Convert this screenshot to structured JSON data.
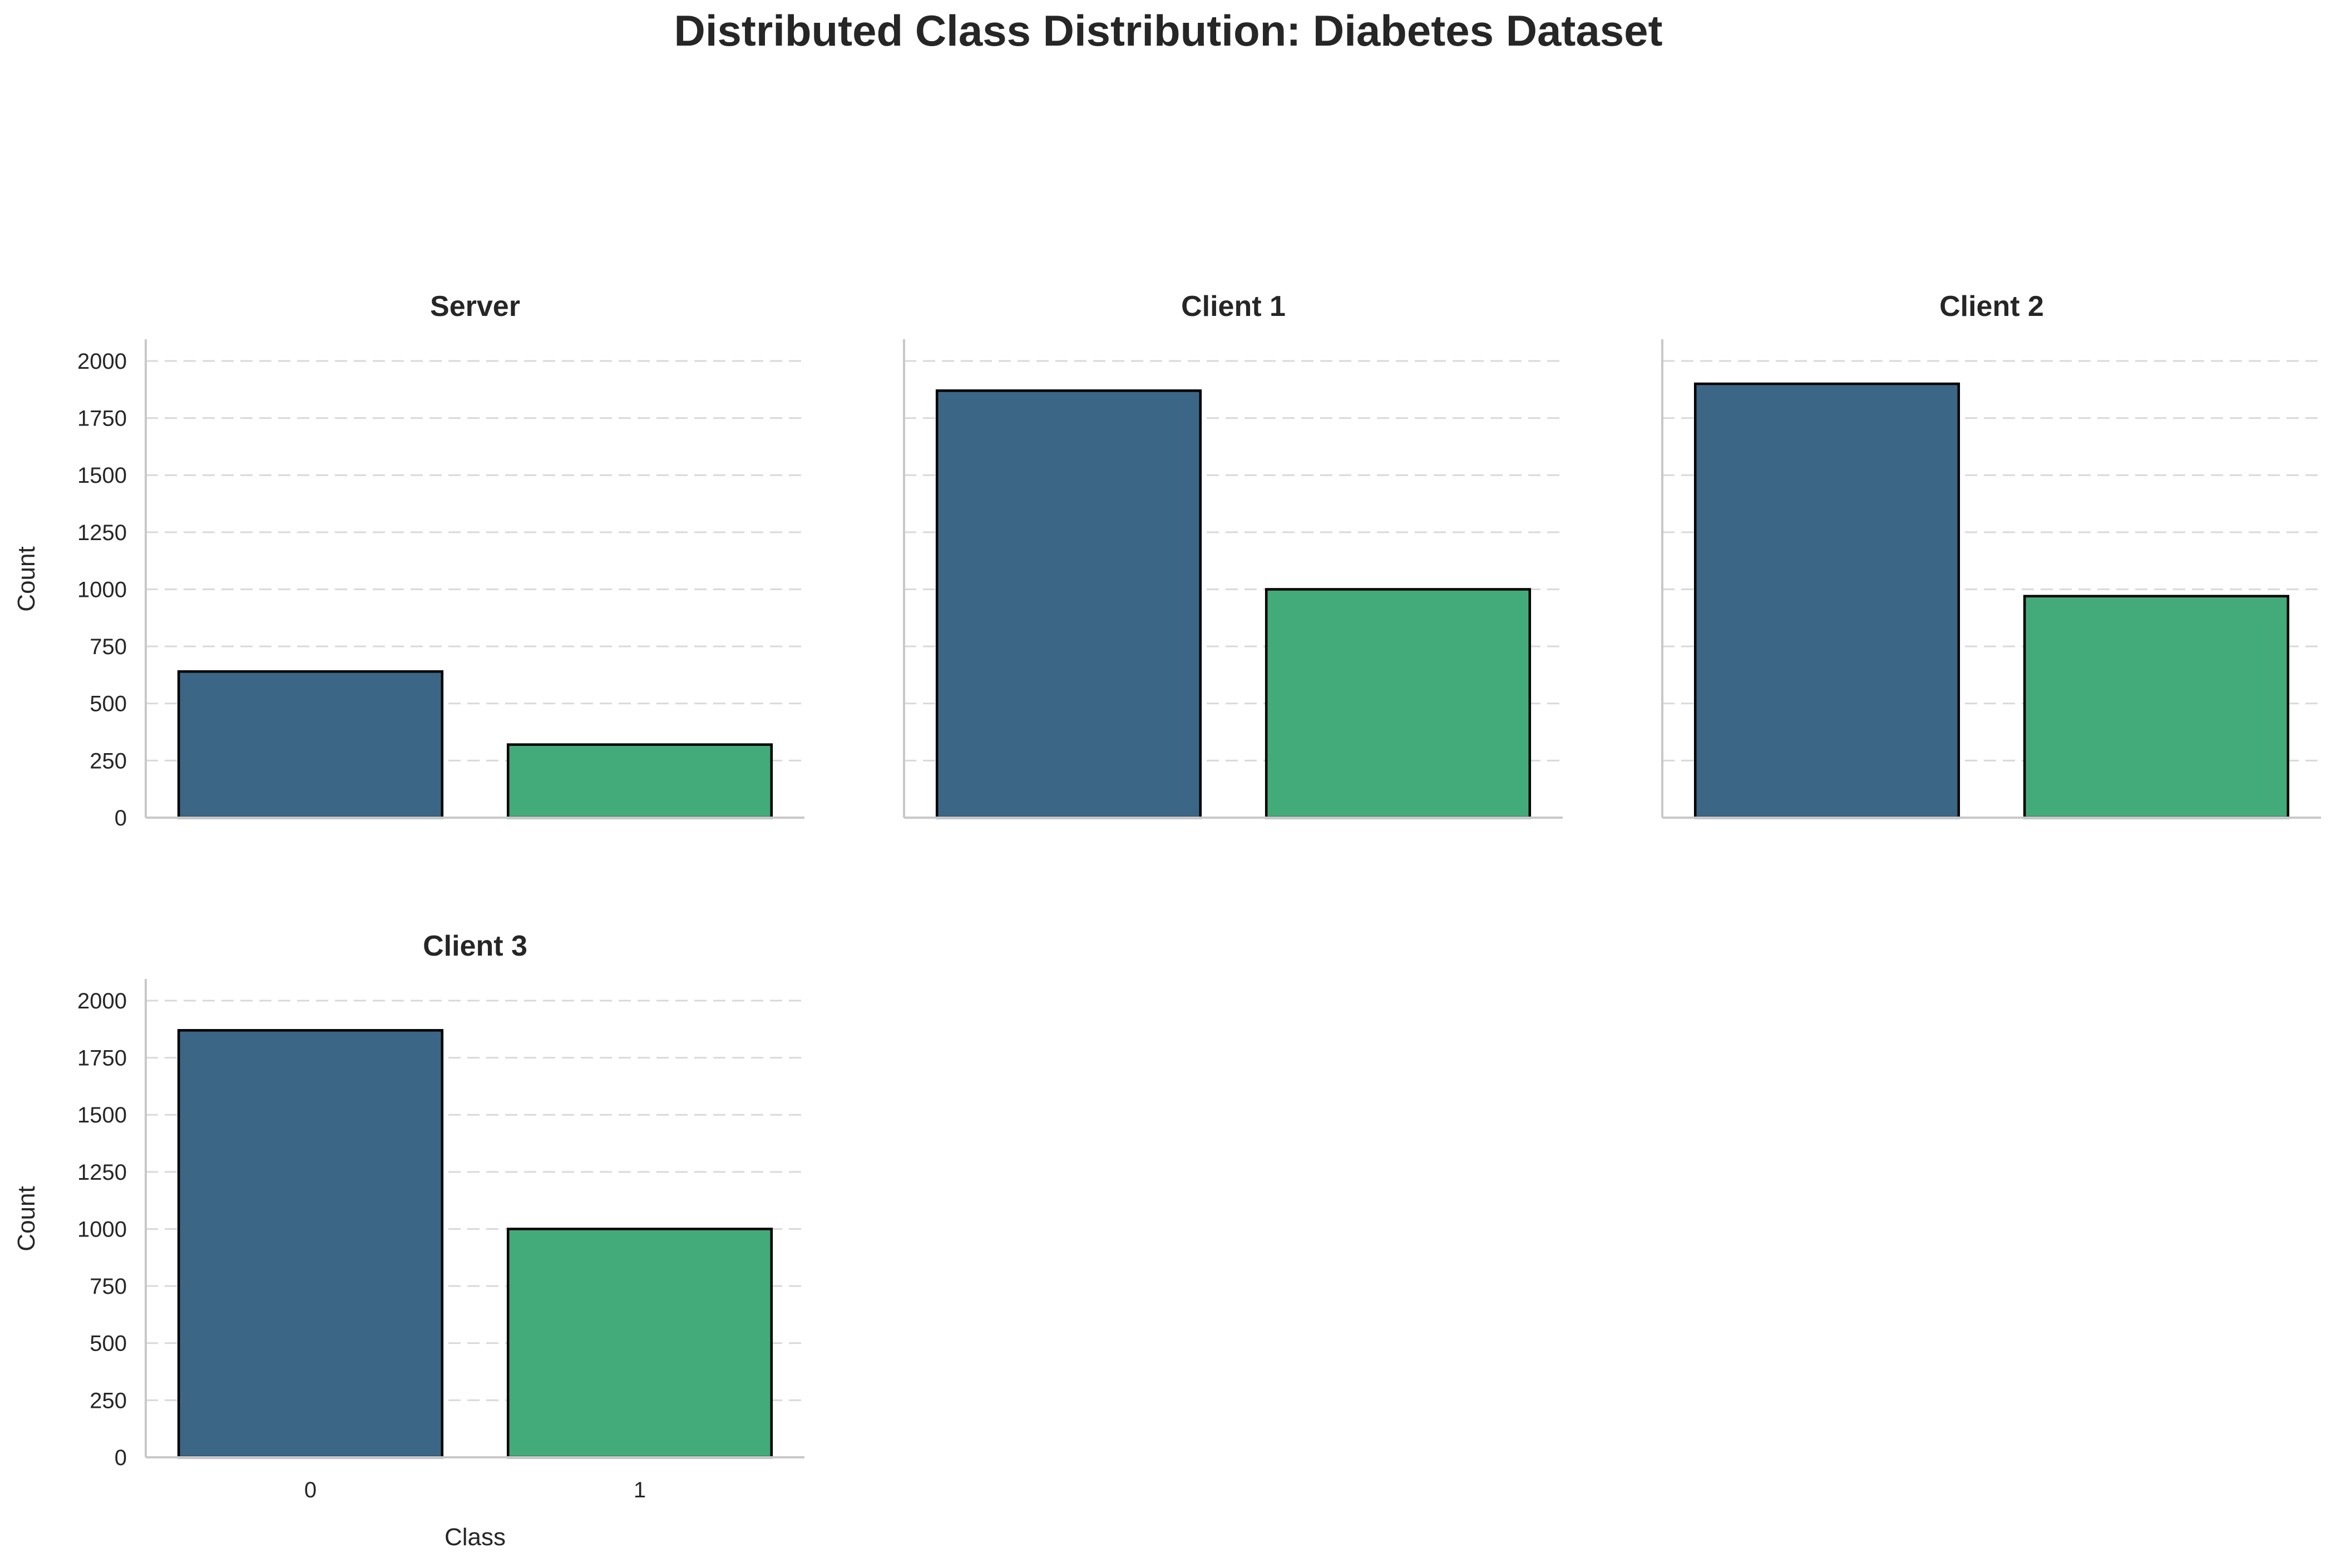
{
  "title": "Distributed Class Distribution: Diabetes Dataset",
  "chart_data": [
    {
      "type": "bar",
      "title": "Server",
      "categories": [
        "0",
        "1"
      ],
      "values": [
        640,
        320
      ],
      "colors": [
        "#3b6685",
        "#43ab79"
      ],
      "xlabel": "",
      "ylabel": "Count",
      "ylim": [
        0,
        2090
      ],
      "yticks": [
        0,
        250,
        500,
        750,
        1000,
        1250,
        1500,
        1750,
        2000
      ],
      "grid": "y-dashed",
      "show_xticks": false,
      "show_yticks": true
    },
    {
      "type": "bar",
      "title": "Client 1",
      "categories": [
        "0",
        "1"
      ],
      "values": [
        1870,
        1000
      ],
      "colors": [
        "#3b6685",
        "#43ab79"
      ],
      "xlabel": "",
      "ylabel": "",
      "ylim": [
        0,
        2090
      ],
      "yticks": [
        0,
        250,
        500,
        750,
        1000,
        1250,
        1500,
        1750,
        2000
      ],
      "grid": "y-dashed",
      "show_xticks": false,
      "show_yticks": false
    },
    {
      "type": "bar",
      "title": "Client 2",
      "categories": [
        "0",
        "1"
      ],
      "values": [
        1900,
        970
      ],
      "colors": [
        "#3b6685",
        "#43ab79"
      ],
      "xlabel": "",
      "ylabel": "",
      "ylim": [
        0,
        2090
      ],
      "yticks": [
        0,
        250,
        500,
        750,
        1000,
        1250,
        1500,
        1750,
        2000
      ],
      "grid": "y-dashed",
      "show_xticks": false,
      "show_yticks": false
    },
    {
      "type": "bar",
      "title": "Client 3",
      "categories": [
        "0",
        "1"
      ],
      "values": [
        1870,
        1000
      ],
      "colors": [
        "#3b6685",
        "#43ab79"
      ],
      "xlabel": "Class",
      "ylabel": "Count",
      "ylim": [
        0,
        2090
      ],
      "yticks": [
        0,
        250,
        500,
        750,
        1000,
        1250,
        1500,
        1750,
        2000
      ],
      "grid": "y-dashed",
      "show_xticks": true,
      "show_yticks": true
    }
  ]
}
